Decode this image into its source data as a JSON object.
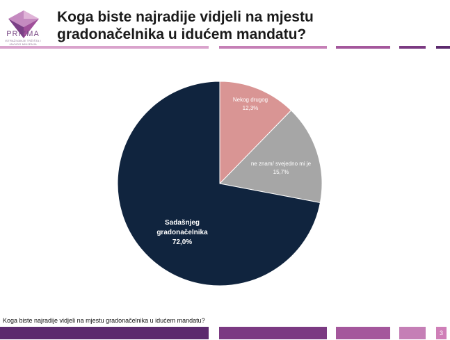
{
  "brand": {
    "name": "PRIZMA",
    "tagline": "ISTRAŽIVANJE TRŽIŠTA I JAVNOG MNIJENJA"
  },
  "header": {
    "title": "Koga biste najradije vidjeli na mjestu gradonačelnika u idućem mandatu?"
  },
  "footer": {
    "caption": "Koga biste najradije vidjeli na mjestu gradonačelnika u idućem mandatu?",
    "page_number": "3"
  },
  "colors": {
    "accent_dark": "#5c2a6e",
    "accent_mid": "#8c4a8a",
    "accent_light": "#cf7fb8"
  },
  "chart_data": {
    "type": "pie",
    "title": "",
    "slices": [
      {
        "label": "Nekog drugog",
        "value": 12.3,
        "value_label": "12,3%",
        "color": "#d99594"
      },
      {
        "label": "ne znam/ svejedno mi je",
        "value": 15.7,
        "value_label": "15,7%",
        "color": "#a6a6a6"
      },
      {
        "label": "Sadašnjeg gradonačelnika",
        "value": 72.0,
        "value_label": "72,0%",
        "color": "#10243e"
      }
    ]
  }
}
